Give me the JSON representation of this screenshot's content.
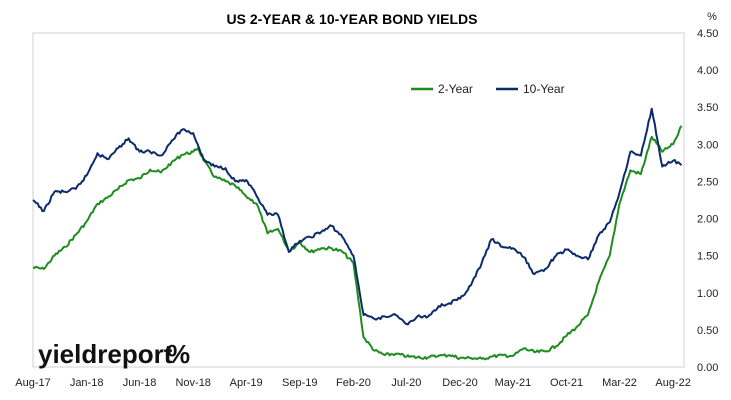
{
  "chart_data": {
    "type": "line",
    "title": "US 2-YEAR & 10-YEAR BOND YIELDS",
    "ylabel": "%",
    "xlabel": "",
    "ylim": [
      0,
      4.5
    ],
    "yticks": [
      "0.00",
      "0.50",
      "1.00",
      "1.50",
      "2.00",
      "2.50",
      "3.00",
      "3.50",
      "4.00",
      "4.50"
    ],
    "xlim": [
      "2017-08-01",
      "2022-09-01"
    ],
    "xticks": [
      {
        "date": "2017-08-01",
        "label": "Aug-17"
      },
      {
        "date": "2018-01-01",
        "label": "Jan-18"
      },
      {
        "date": "2018-06-01",
        "label": "Jun-18"
      },
      {
        "date": "2018-11-01",
        "label": "Nov-18"
      },
      {
        "date": "2019-04-01",
        "label": "Apr-19"
      },
      {
        "date": "2019-09-01",
        "label": "Sep-19"
      },
      {
        "date": "2020-02-01",
        "label": "Feb-20"
      },
      {
        "date": "2020-07-01",
        "label": "Jul-20"
      },
      {
        "date": "2020-12-01",
        "label": "Dec-20"
      },
      {
        "date": "2021-05-01",
        "label": "May-21"
      },
      {
        "date": "2021-10-01",
        "label": "Oct-21"
      },
      {
        "date": "2022-03-01",
        "label": "Mar-22"
      },
      {
        "date": "2022-08-01",
        "label": "Aug-22"
      }
    ],
    "grid": {
      "horizontal": false,
      "vertical": false
    },
    "legend": "top-right",
    "series": [
      {
        "name": "2-Year",
        "color": "#1e8c1e",
        "points": [
          [
            "2017-08-01",
            1.34
          ],
          [
            "2017-09-01",
            1.32
          ],
          [
            "2017-10-01",
            1.5
          ],
          [
            "2017-11-01",
            1.62
          ],
          [
            "2017-12-01",
            1.78
          ],
          [
            "2018-01-01",
            1.96
          ],
          [
            "2018-02-01",
            2.2
          ],
          [
            "2018-03-01",
            2.28
          ],
          [
            "2018-04-01",
            2.4
          ],
          [
            "2018-05-01",
            2.52
          ],
          [
            "2018-06-01",
            2.54
          ],
          [
            "2018-07-01",
            2.66
          ],
          [
            "2018-08-01",
            2.62
          ],
          [
            "2018-09-01",
            2.76
          ],
          [
            "2018-10-01",
            2.86
          ],
          [
            "2018-11-01",
            2.9
          ],
          [
            "2018-11-15",
            2.95
          ],
          [
            "2018-12-01",
            2.78
          ],
          [
            "2019-01-01",
            2.56
          ],
          [
            "2019-02-01",
            2.5
          ],
          [
            "2019-03-01",
            2.44
          ],
          [
            "2019-04-01",
            2.3
          ],
          [
            "2019-05-01",
            2.2
          ],
          [
            "2019-06-01",
            1.8
          ],
          [
            "2019-07-01",
            1.86
          ],
          [
            "2019-08-01",
            1.56
          ],
          [
            "2019-09-01",
            1.68
          ],
          [
            "2019-10-01",
            1.55
          ],
          [
            "2019-11-01",
            1.6
          ],
          [
            "2019-12-01",
            1.6
          ],
          [
            "2020-01-01",
            1.55
          ],
          [
            "2020-02-01",
            1.4
          ],
          [
            "2020-03-01",
            0.4
          ],
          [
            "2020-04-01",
            0.22
          ],
          [
            "2020-05-01",
            0.16
          ],
          [
            "2020-06-01",
            0.18
          ],
          [
            "2020-07-01",
            0.14
          ],
          [
            "2020-08-01",
            0.13
          ],
          [
            "2020-09-01",
            0.13
          ],
          [
            "2020-10-01",
            0.15
          ],
          [
            "2020-11-01",
            0.16
          ],
          [
            "2020-12-01",
            0.12
          ],
          [
            "2021-01-01",
            0.12
          ],
          [
            "2021-02-01",
            0.11
          ],
          [
            "2021-03-01",
            0.14
          ],
          [
            "2021-04-01",
            0.16
          ],
          [
            "2021-05-01",
            0.15
          ],
          [
            "2021-06-01",
            0.25
          ],
          [
            "2021-07-01",
            0.2
          ],
          [
            "2021-08-01",
            0.21
          ],
          [
            "2021-09-01",
            0.28
          ],
          [
            "2021-10-01",
            0.42
          ],
          [
            "2021-11-01",
            0.55
          ],
          [
            "2021-12-01",
            0.7
          ],
          [
            "2022-01-01",
            1.15
          ],
          [
            "2022-02-01",
            1.5
          ],
          [
            "2022-03-01",
            2.2
          ],
          [
            "2022-04-01",
            2.65
          ],
          [
            "2022-05-01",
            2.6
          ],
          [
            "2022-06-01",
            3.1
          ],
          [
            "2022-07-01",
            2.9
          ],
          [
            "2022-08-01",
            3.0
          ],
          [
            "2022-08-25",
            3.25
          ]
        ]
      },
      {
        "name": "10-Year",
        "color": "#0d2a6b",
        "points": [
          [
            "2017-08-01",
            2.25
          ],
          [
            "2017-09-01",
            2.1
          ],
          [
            "2017-10-01",
            2.36
          ],
          [
            "2017-11-01",
            2.36
          ],
          [
            "2017-12-01",
            2.4
          ],
          [
            "2018-01-01",
            2.58
          ],
          [
            "2018-02-01",
            2.88
          ],
          [
            "2018-03-01",
            2.8
          ],
          [
            "2018-04-01",
            2.95
          ],
          [
            "2018-05-01",
            3.08
          ],
          [
            "2018-06-01",
            2.9
          ],
          [
            "2018-07-01",
            2.9
          ],
          [
            "2018-08-01",
            2.85
          ],
          [
            "2018-09-01",
            3.05
          ],
          [
            "2018-10-01",
            3.2
          ],
          [
            "2018-11-01",
            3.15
          ],
          [
            "2018-12-01",
            2.8
          ],
          [
            "2019-01-01",
            2.7
          ],
          [
            "2019-02-01",
            2.68
          ],
          [
            "2019-03-01",
            2.5
          ],
          [
            "2019-04-01",
            2.52
          ],
          [
            "2019-05-01",
            2.3
          ],
          [
            "2019-06-01",
            2.05
          ],
          [
            "2019-07-01",
            2.05
          ],
          [
            "2019-08-01",
            1.55
          ],
          [
            "2019-09-01",
            1.7
          ],
          [
            "2019-10-01",
            1.75
          ],
          [
            "2019-11-01",
            1.82
          ],
          [
            "2019-12-01",
            1.9
          ],
          [
            "2020-01-01",
            1.75
          ],
          [
            "2020-02-01",
            1.5
          ],
          [
            "2020-03-01",
            0.7
          ],
          [
            "2020-04-01",
            0.65
          ],
          [
            "2020-05-01",
            0.68
          ],
          [
            "2020-06-01",
            0.7
          ],
          [
            "2020-07-01",
            0.58
          ],
          [
            "2020-08-01",
            0.68
          ],
          [
            "2020-09-01",
            0.68
          ],
          [
            "2020-10-01",
            0.82
          ],
          [
            "2020-11-01",
            0.86
          ],
          [
            "2020-12-01",
            0.92
          ],
          [
            "2021-01-01",
            1.1
          ],
          [
            "2021-02-01",
            1.4
          ],
          [
            "2021-03-01",
            1.72
          ],
          [
            "2021-04-01",
            1.62
          ],
          [
            "2021-05-01",
            1.6
          ],
          [
            "2021-06-01",
            1.48
          ],
          [
            "2021-07-01",
            1.25
          ],
          [
            "2021-08-01",
            1.32
          ],
          [
            "2021-09-01",
            1.5
          ],
          [
            "2021-10-01",
            1.58
          ],
          [
            "2021-11-01",
            1.5
          ],
          [
            "2021-12-01",
            1.45
          ],
          [
            "2022-01-01",
            1.78
          ],
          [
            "2022-02-01",
            1.95
          ],
          [
            "2022-03-01",
            2.35
          ],
          [
            "2022-04-01",
            2.9
          ],
          [
            "2022-05-01",
            2.85
          ],
          [
            "2022-06-01",
            3.48
          ],
          [
            "2022-07-01",
            2.7
          ],
          [
            "2022-08-01",
            2.78
          ],
          [
            "2022-08-25",
            2.72
          ]
        ]
      }
    ]
  },
  "branding": {
    "wordmark_main": "yieldreport",
    "wordmark_symbol": "%",
    "symbol_color": "#c0392b"
  }
}
